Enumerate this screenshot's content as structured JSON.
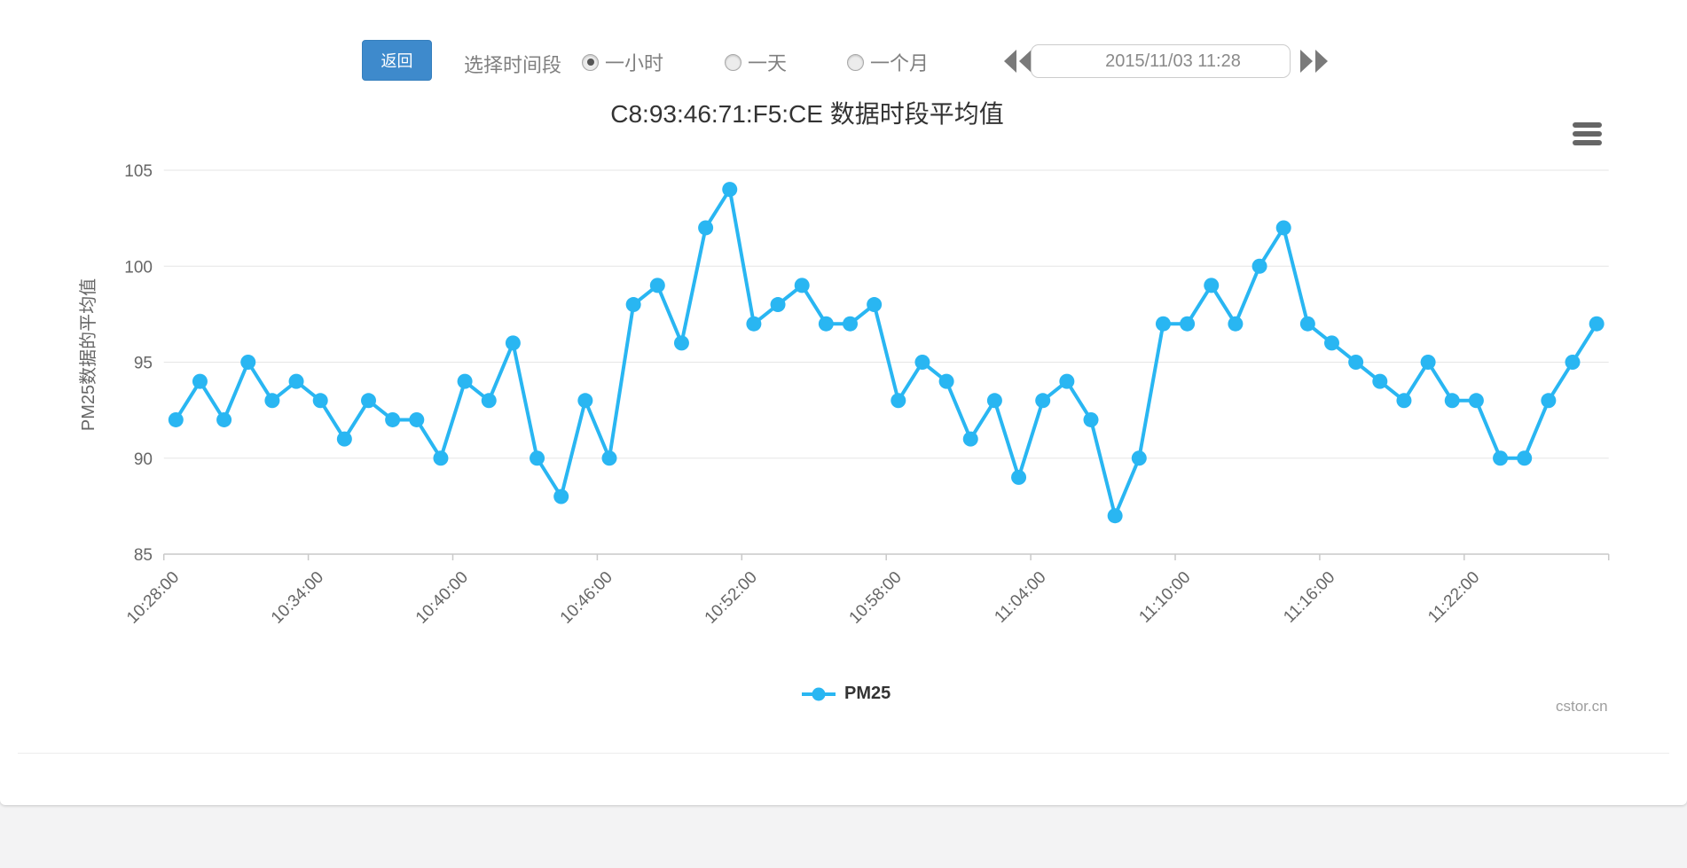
{
  "colors": {
    "accent_blue": "#3e8acc",
    "series_cyan": "#29b6f2",
    "toolbar_text": "#808080",
    "axis_text": "#666666",
    "grid_line": "#e6e6e6",
    "axis_line": "#c9c9c9"
  },
  "toolbar": {
    "back_label": "返回",
    "range_label": "选择时间段",
    "radios": [
      {
        "label": "一小时",
        "selected": true
      },
      {
        "label": "一天",
        "selected": false
      },
      {
        "label": "一个月",
        "selected": false
      }
    ],
    "datetime_value": "2015/11/03 11:28"
  },
  "chart": {
    "title": "C8:93:46:71:F5:CE 数据时段平均值",
    "legend_label": "PM25",
    "watermark": "cstor.cn"
  },
  "chart_data": {
    "type": "line",
    "title": "C8:93:46:71:F5:CE 数据时段平均值",
    "xlabel": "",
    "ylabel": "PM25数据的平均值",
    "ylim": [
      85,
      105
    ],
    "y_ticks": [
      85,
      90,
      95,
      100,
      105
    ],
    "grid": true,
    "legend_position": "bottom",
    "x_tick_labels": [
      "10:28:00",
      "10:34:00",
      "10:40:00",
      "10:46:00",
      "10:52:00",
      "10:58:00",
      "11:04:00",
      "11:10:00",
      "11:16:00",
      "11:22:00"
    ],
    "x": [
      "10:28:00",
      "10:29:00",
      "10:30:00",
      "10:31:00",
      "10:32:00",
      "10:33:00",
      "10:34:00",
      "10:35:00",
      "10:36:00",
      "10:37:00",
      "10:38:00",
      "10:39:00",
      "10:40:00",
      "10:41:00",
      "10:42:00",
      "10:43:00",
      "10:44:00",
      "10:45:00",
      "10:46:00",
      "10:47:00",
      "10:48:00",
      "10:49:00",
      "10:50:00",
      "10:51:00",
      "10:52:00",
      "10:53:00",
      "10:54:00",
      "10:55:00",
      "10:56:00",
      "10:57:00",
      "10:58:00",
      "10:59:00",
      "11:00:00",
      "11:01:00",
      "11:02:00",
      "11:03:00",
      "11:04:00",
      "11:05:00",
      "11:06:00",
      "11:07:00",
      "11:08:00",
      "11:09:00",
      "11:10:00",
      "11:11:00",
      "11:12:00",
      "11:13:00",
      "11:14:00",
      "11:15:00",
      "11:16:00",
      "11:17:00",
      "11:18:00",
      "11:19:00",
      "11:20:00",
      "11:21:00",
      "11:22:00",
      "11:23:00",
      "11:24:00",
      "11:25:00",
      "11:26:00",
      "11:27:00"
    ],
    "series": [
      {
        "name": "PM25",
        "color": "#29b6f2",
        "values": [
          92,
          94,
          92,
          95,
          93,
          94,
          93,
          91,
          93,
          92,
          92,
          90,
          94,
          93,
          96,
          90,
          88,
          93,
          90,
          98,
          99,
          96,
          102,
          104,
          97,
          98,
          99,
          97,
          97,
          98,
          93,
          95,
          94,
          91,
          93,
          89,
          93,
          94,
          92,
          87,
          90,
          97,
          97,
          99,
          97,
          100,
          102,
          97,
          96,
          95,
          94,
          93,
          95,
          93,
          93,
          90,
          90,
          93,
          95,
          97
        ]
      }
    ]
  }
}
